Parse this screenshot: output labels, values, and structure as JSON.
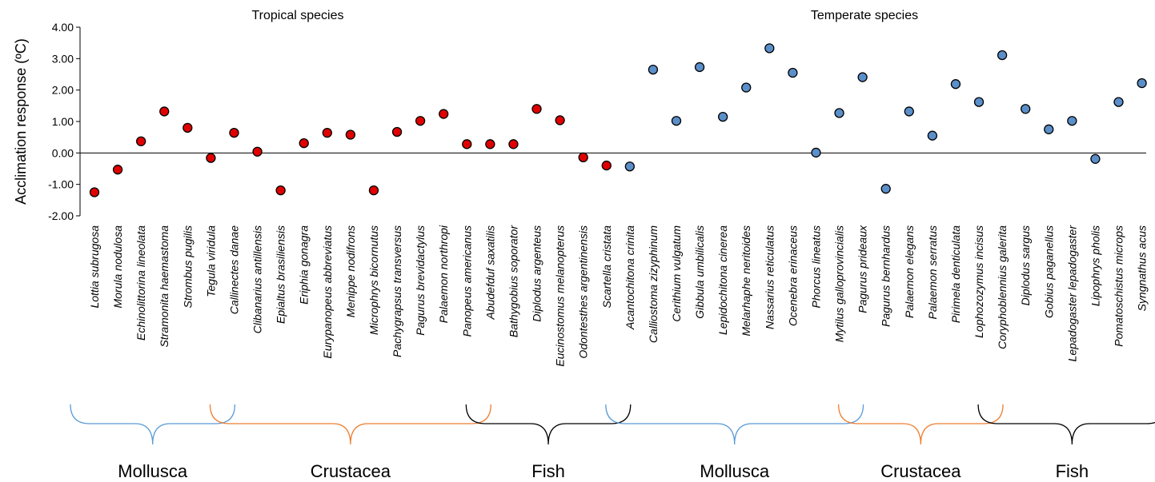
{
  "chart_data": {
    "type": "scatter",
    "ylabel": "Acclimation response (ºC)",
    "ylim": [
      -2,
      4
    ],
    "yticks": [
      "-2.00",
      "-1.00",
      "0.00",
      "1.00",
      "2.00",
      "3.00",
      "4.00"
    ],
    "grid": false,
    "marker_edge_color": "#000000",
    "panels": [
      {
        "title": "Tropical species",
        "color": "#e00000",
        "categories": [
          "Lottia subrugosa",
          "Morula nodulosa",
          "Echinolittorina lineolata",
          "Stramonita haemastoma",
          "Strombus pugilis",
          "Tegula viridula",
          "Callinectes danae",
          "Clibanarius antillensis",
          "Epialtus brasiliensis",
          "Eriphia gonagra",
          "Eurypanopeus abbreviatus",
          "Menippe nodifrons",
          "Microphrys bicornutus",
          "Pachygrapsus transversus",
          "Pagurus brevidactylus",
          "Palaemon northropi",
          "Panopeus americanus",
          "Abudefduf saxatilis",
          "Bathygobius soporator",
          "Diplodus argenteus",
          "Eucinostomus melanopterus",
          "Odontesthes argentinensis",
          "Scartella cristata"
        ],
        "values": [
          -1.25,
          -0.53,
          0.37,
          1.32,
          0.8,
          -0.16,
          0.64,
          0.04,
          -1.19,
          0.31,
          0.64,
          0.58,
          -1.19,
          0.67,
          1.02,
          1.24,
          0.28,
          0.28,
          0.28,
          1.4,
          1.04,
          -0.14,
          -0.4
        ],
        "groups": [
          {
            "name": "Mollusca",
            "start": 0,
            "end": 5,
            "color": "#5b9bd5"
          },
          {
            "name": "Crustacea",
            "start": 6,
            "end": 16,
            "color": "#ed7d31"
          },
          {
            "name": "Fish",
            "start": 17,
            "end": 22,
            "color": "#000000"
          }
        ]
      },
      {
        "title": "Temperate species",
        "color": "#5b8fc9",
        "categories": [
          "Acantochitona crinita",
          "Calliostoma zizyphinum",
          "Cerithium vulgatum",
          "Gibbula umbilicalis",
          "Lepidochitona cinerea",
          "Melarhaphe neritoides",
          "Nassarius reticulatus",
          "Ocenebra erinaceus",
          "Phorcus lineatus",
          "Mytilus galloprovincialis",
          "Pagurus prideaux",
          "Pagurus bernhardus",
          "Palaemon elegans",
          "Palaemon serratus",
          "Pirimela denticulata",
          "Lophozozymus incisus",
          "Coryphoblennius galerita",
          "Diplodus sargus",
          "Gobius paganellus",
          "Lepadogaster lepadogaster",
          "Lipophrys pholis",
          "Pomatoschistus microps",
          "Syngnathus acus"
        ],
        "values": [
          -0.43,
          2.65,
          1.02,
          2.73,
          1.15,
          2.08,
          3.33,
          2.55,
          0.01,
          1.27,
          2.41,
          -1.14,
          1.32,
          0.55,
          2.19,
          1.62,
          3.11,
          1.4,
          0.75,
          1.02,
          -0.19,
          1.62,
          2.22
        ],
        "groups": [
          {
            "name": "Mollusca",
            "start": 0,
            "end": 9,
            "color": "#5b9bd5"
          },
          {
            "name": "Crustacea",
            "start": 10,
            "end": 15,
            "color": "#ed7d31"
          },
          {
            "name": "Fish",
            "start": 16,
            "end": 22,
            "color": "#000000"
          }
        ]
      }
    ]
  }
}
